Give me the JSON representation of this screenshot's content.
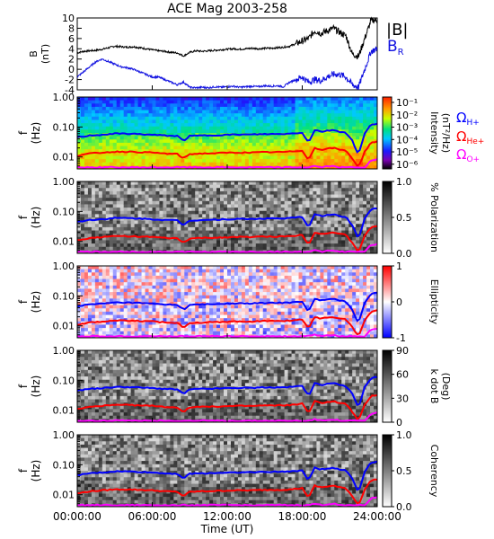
{
  "title": "ACE Mag 2003-258",
  "xlabel": "Time (UT)",
  "x_ticks": [
    "00:00:00",
    "06:00:00",
    "12:00:00",
    "18:00:00",
    "24:00:00"
  ],
  "freq_ticks": [
    "1.00",
    "0.10",
    "0.01"
  ],
  "freq_ylabel": [
    "f",
    "(Hz)"
  ],
  "legend": {
    "b_total": "|B|",
    "b_radial_main": "B",
    "b_radial_sub": "R",
    "omega": "Ω",
    "h_sub": "H+",
    "he_sub": "He+",
    "o_sub": "O+"
  },
  "colors": {
    "b_total": "#000000",
    "b_radial": "#1010e0",
    "h_plus": "#0000ff",
    "he_plus": "#ff0000",
    "o_plus": "#ff00ff"
  },
  "chart_data": [
    {
      "type": "line",
      "panel": "magnetic field",
      "ylabel": [
        "B",
        "(nT)"
      ],
      "ylim": [
        -4,
        10
      ],
      "y_ticks": [
        "10",
        "8",
        "6",
        "4",
        "2",
        "0",
        "-2",
        "-4"
      ],
      "xlim_hours": [
        0,
        24
      ],
      "series": [
        {
          "name": "|B|",
          "color": "#000000",
          "x": [
            0,
            0.5,
            1,
            1.5,
            2,
            2.5,
            3,
            3.5,
            4,
            4.5,
            5,
            5.5,
            6,
            6.5,
            7,
            7.5,
            8,
            8.5,
            9,
            9.5,
            10,
            10.5,
            11,
            11.5,
            12,
            12.5,
            13,
            13.5,
            14,
            14.5,
            15,
            15.5,
            16,
            16.5,
            17,
            17.5,
            18,
            18.5,
            19,
            19.5,
            20,
            20.5,
            21,
            21.5,
            22,
            22.5,
            23,
            23.5,
            24
          ],
          "y": [
            3.2,
            3.5,
            3.6,
            3.7,
            3.9,
            4.2,
            4.5,
            4.4,
            4.3,
            4.4,
            4.2,
            4.0,
            3.8,
            3.6,
            3.5,
            3.3,
            3.2,
            2.6,
            3.3,
            3.6,
            3.5,
            3.6,
            3.7,
            3.8,
            3.9,
            4.0,
            3.9,
            4.0,
            4.1,
            4.0,
            4.1,
            4.1,
            4.2,
            4.3,
            4.5,
            5.0,
            5.5,
            6.0,
            7.5,
            7.0,
            7.5,
            8.0,
            7.2,
            6.5,
            3.0,
            2.5,
            6.0,
            9.5,
            9.6
          ]
        },
        {
          "name": "BR",
          "color": "#1010e0",
          "x": [
            0,
            0.5,
            1,
            1.5,
            2,
            2.5,
            3,
            3.5,
            4,
            4.5,
            5,
            5.5,
            6,
            6.5,
            7,
            7.5,
            8,
            8.5,
            9,
            9.5,
            10,
            10.5,
            11,
            11.5,
            12,
            12.5,
            13,
            13.5,
            14,
            14.5,
            15,
            15.5,
            16,
            16.5,
            17,
            17.5,
            18,
            18.5,
            19,
            19.5,
            20,
            20.5,
            21,
            21.5,
            22,
            22.5,
            23,
            23.5,
            24
          ],
          "y": [
            -1.5,
            -0.5,
            0.5,
            1.5,
            2.0,
            1.5,
            1.0,
            0.5,
            0.3,
            0.0,
            -0.5,
            -1.0,
            -1.5,
            -1.5,
            -2.0,
            -2.5,
            -3.0,
            -2.5,
            -3.5,
            -3.6,
            -3.5,
            -3.6,
            -3.4,
            -3.5,
            -3.4,
            -3.3,
            -3.5,
            -3.4,
            -3.3,
            -3.4,
            -3.2,
            -3.3,
            -3.2,
            -3.4,
            -2.5,
            -2.0,
            -1.5,
            -2.5,
            -2.0,
            -2.2,
            -1.5,
            -1.0,
            -1.0,
            -1.5,
            -3.0,
            -3.5,
            0.0,
            3.5,
            4.0
          ]
        }
      ]
    },
    {
      "type": "heatmap",
      "panel": "power spectrum",
      "ylabel": [
        "f",
        "(Hz)"
      ],
      "colorbar_label": [
        "Intensity",
        "(nT²/Hz)"
      ],
      "colorbar_ticks": [
        "10⁻¹",
        "10⁻²",
        "10⁻³",
        "10⁻⁴",
        "10⁻⁵",
        "10⁻⁶"
      ],
      "ylim_hz": [
        0.004,
        1.0
      ]
    },
    {
      "type": "heatmap",
      "panel": "polarization",
      "ylabel": [
        "f",
        "(Hz)"
      ],
      "colorbar_label": [
        "% Polarization"
      ],
      "colorbar_ticks": [
        "1.0",
        "0.5",
        "0.0"
      ]
    },
    {
      "type": "heatmap",
      "panel": "ellipticity",
      "ylabel": [
        "f",
        "(Hz)"
      ],
      "colorbar_label": [
        "Ellipticity"
      ],
      "colorbar_ticks": [
        "1",
        "0",
        "-1"
      ]
    },
    {
      "type": "heatmap",
      "panel": "wave normal angle",
      "ylabel": [
        "f",
        "(Hz)"
      ],
      "colorbar_label": [
        "k dot B",
        "(Deg)"
      ],
      "colorbar_ticks": [
        "90",
        "60",
        "30",
        "0"
      ]
    },
    {
      "type": "heatmap",
      "panel": "coherency",
      "ylabel": [
        "f",
        "(Hz)"
      ],
      "colorbar_label": [
        "Coherency"
      ],
      "colorbar_ticks": [
        "1.0",
        "0.5",
        "0.0"
      ]
    }
  ],
  "gyrofrequency_lines": [
    {
      "name": "ΩH+",
      "color": "#0000ff",
      "x": [
        0,
        1,
        2,
        3,
        4,
        5,
        6,
        7,
        8,
        8.5,
        9,
        10,
        11,
        12,
        13,
        14,
        15,
        16,
        17,
        18,
        18.5,
        19,
        19.5,
        20,
        20.5,
        21,
        21.5,
        22,
        22.5,
        23,
        23.5,
        24
      ],
      "f_hz": [
        0.045,
        0.052,
        0.055,
        0.06,
        0.06,
        0.058,
        0.055,
        0.052,
        0.05,
        0.035,
        0.05,
        0.052,
        0.053,
        0.055,
        0.056,
        0.056,
        0.058,
        0.058,
        0.06,
        0.065,
        0.03,
        0.08,
        0.07,
        0.075,
        0.08,
        0.07,
        0.065,
        0.035,
        0.012,
        0.06,
        0.12,
        0.13
      ]
    },
    {
      "name": "ΩHe+",
      "color": "#ff0000",
      "x": [
        0,
        1,
        2,
        3,
        4,
        5,
        6,
        7,
        8,
        8.5,
        9,
        10,
        11,
        12,
        13,
        14,
        15,
        16,
        17,
        18,
        18.5,
        19,
        19.5,
        20,
        20.5,
        21,
        21.5,
        22,
        22.5,
        23,
        23.5,
        24
      ],
      "f_hz": [
        0.011,
        0.013,
        0.014,
        0.015,
        0.015,
        0.0145,
        0.014,
        0.013,
        0.0125,
        0.009,
        0.0125,
        0.013,
        0.0133,
        0.0138,
        0.014,
        0.014,
        0.0145,
        0.0145,
        0.015,
        0.0165,
        0.008,
        0.02,
        0.0175,
        0.019,
        0.02,
        0.0175,
        0.0165,
        0.009,
        0.0045,
        0.015,
        0.03,
        0.033
      ]
    },
    {
      "name": "ΩO+",
      "color": "#ff00ff",
      "x": [
        0,
        1,
        2,
        3,
        4,
        5,
        6,
        7,
        8,
        8.5,
        9,
        10,
        11,
        12,
        13,
        14,
        15,
        16,
        17,
        18,
        18.5,
        19,
        19.5,
        20,
        20.5,
        21,
        21.5,
        22,
        22.5,
        23,
        23.5,
        24
      ],
      "f_hz": [
        0.0045,
        0.0045,
        0.0045,
        0.0045,
        0.0045,
        0.0045,
        0.0045,
        0.0045,
        0.0045,
        0.0045,
        0.0045,
        0.0045,
        0.0045,
        0.0045,
        0.0045,
        0.0045,
        0.0045,
        0.0045,
        0.0045,
        0.0045,
        0.0045,
        0.005,
        0.0045,
        0.0048,
        0.005,
        0.0045,
        0.0045,
        0.0045,
        0.0045,
        0.0045,
        0.0075,
        0.0083
      ]
    }
  ]
}
